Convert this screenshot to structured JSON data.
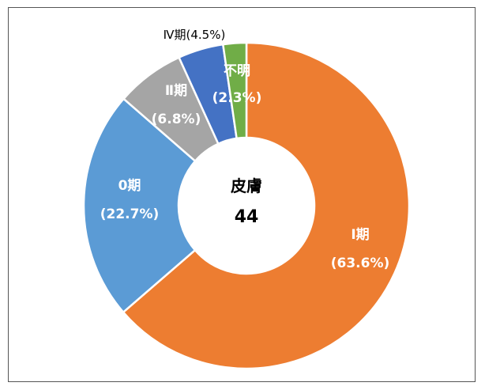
{
  "chart_data": {
    "type": "pie",
    "style": "donut",
    "center_label": "皮膚",
    "center_value": "44",
    "start": "12 o'clock",
    "direction": "clockwise",
    "slices": [
      {
        "label": "Ⅰ期",
        "pct_text": "(63.6%)",
        "value": 63.6,
        "color": "#ED7D31",
        "label_color": "#ffffff"
      },
      {
        "label": "0期",
        "pct_text": "(22.7%)",
        "value": 22.7,
        "color": "#5B9BD5",
        "label_color": "#ffffff"
      },
      {
        "label": "Ⅱ期",
        "pct_text": "(6.8%)",
        "value": 6.8,
        "color": "#A5A5A5",
        "label_color": "#ffffff"
      },
      {
        "label": "Ⅳ期(4.5%)",
        "pct_text": "",
        "value": 4.5,
        "color": "#4472C4",
        "label_color": "#000000"
      },
      {
        "label": "不明",
        "pct_text": "(2.3%)",
        "value": 2.3,
        "color": "#70AD47",
        "label_color": "#ffffff"
      }
    ]
  }
}
